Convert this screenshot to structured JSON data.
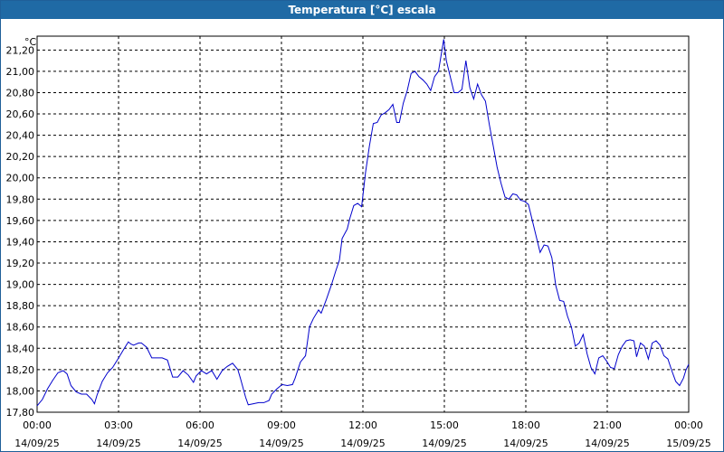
{
  "window": {
    "title": "Temperatura [°C] escala"
  },
  "chart_data": {
    "type": "line",
    "title": "Temperatura [°C] escala",
    "unit_label": "°C",
    "xlabel": "",
    "ylabel": "",
    "grid": true,
    "ylim": [
      17.8,
      21.33
    ],
    "xlim": [
      0,
      24
    ],
    "y_ticks": [
      {
        "v": 17.8,
        "label": "17,80"
      },
      {
        "v": 18.0,
        "label": "18,00"
      },
      {
        "v": 18.2,
        "label": "18,20"
      },
      {
        "v": 18.4,
        "label": "18,40"
      },
      {
        "v": 18.6,
        "label": "18,60"
      },
      {
        "v": 18.8,
        "label": "18,80"
      },
      {
        "v": 19.0,
        "label": "19,00"
      },
      {
        "v": 19.2,
        "label": "19,20"
      },
      {
        "v": 19.4,
        "label": "19,40"
      },
      {
        "v": 19.6,
        "label": "19,60"
      },
      {
        "v": 19.8,
        "label": "19,80"
      },
      {
        "v": 20.0,
        "label": "20,00"
      },
      {
        "v": 20.2,
        "label": "20,20"
      },
      {
        "v": 20.4,
        "label": "20,40"
      },
      {
        "v": 20.6,
        "label": "20,60"
      },
      {
        "v": 20.8,
        "label": "20,80"
      },
      {
        "v": 21.0,
        "label": "21,00"
      },
      {
        "v": 21.2,
        "label": "21,20"
      }
    ],
    "x_ticks": [
      {
        "h": 0,
        "time": "00:00",
        "date": "14/09/25"
      },
      {
        "h": 3,
        "time": "03:00",
        "date": "14/09/25"
      },
      {
        "h": 6,
        "time": "06:00",
        "date": "14/09/25"
      },
      {
        "h": 9,
        "time": "09:00",
        "date": "14/09/25"
      },
      {
        "h": 12,
        "time": "12:00",
        "date": "14/09/25"
      },
      {
        "h": 15,
        "time": "15:00",
        "date": "14/09/25"
      },
      {
        "h": 18,
        "time": "18:00",
        "date": "14/09/25"
      },
      {
        "h": 21,
        "time": "21:00",
        "date": "14/09/25"
      },
      {
        "h": 24,
        "time": "00:00",
        "date": "15/09/25"
      }
    ],
    "series": [
      {
        "color": "#0000cc",
        "points": [
          [
            0.0,
            17.86
          ],
          [
            0.2,
            17.92
          ],
          [
            0.4,
            18.02
          ],
          [
            0.6,
            18.1
          ],
          [
            0.8,
            18.17
          ],
          [
            1.0,
            18.19
          ],
          [
            1.15,
            18.16
          ],
          [
            1.3,
            18.05
          ],
          [
            1.5,
            17.99
          ],
          [
            1.7,
            17.97
          ],
          [
            1.9,
            17.97
          ],
          [
            2.1,
            17.92
          ],
          [
            2.2,
            17.88
          ],
          [
            2.3,
            17.96
          ],
          [
            2.5,
            18.09
          ],
          [
            2.7,
            18.17
          ],
          [
            2.9,
            18.22
          ],
          [
            3.1,
            18.3
          ],
          [
            3.3,
            18.38
          ],
          [
            3.5,
            18.46
          ],
          [
            3.6,
            18.44
          ],
          [
            3.7,
            18.43
          ],
          [
            3.9,
            18.45
          ],
          [
            4.0,
            18.45
          ],
          [
            4.2,
            18.41
          ],
          [
            4.4,
            18.31
          ],
          [
            4.6,
            18.31
          ],
          [
            4.8,
            18.31
          ],
          [
            5.0,
            18.29
          ],
          [
            5.2,
            18.13
          ],
          [
            5.4,
            18.13
          ],
          [
            5.6,
            18.19
          ],
          [
            5.8,
            18.15
          ],
          [
            6.0,
            18.08
          ],
          [
            6.1,
            18.14
          ],
          [
            6.3,
            18.19
          ],
          [
            6.5,
            18.16
          ],
          [
            6.7,
            18.19
          ],
          [
            6.9,
            18.11
          ],
          [
            7.1,
            18.19
          ],
          [
            7.3,
            18.23
          ],
          [
            7.5,
            18.26
          ],
          [
            7.7,
            18.2
          ],
          [
            7.8,
            18.12
          ],
          [
            8.0,
            17.94
          ],
          [
            8.1,
            17.87
          ],
          [
            8.3,
            17.88
          ],
          [
            8.5,
            17.89
          ],
          [
            8.7,
            17.89
          ],
          [
            8.9,
            17.91
          ],
          [
            9.0,
            17.97
          ],
          [
            9.2,
            18.02
          ],
          [
            9.4,
            18.06
          ],
          [
            9.6,
            18.05
          ],
          [
            9.8,
            18.06
          ],
          [
            9.9,
            18.12
          ],
          [
            10.1,
            18.27
          ],
          [
            10.3,
            18.33
          ],
          [
            10.45,
            18.6
          ],
          [
            10.6,
            18.68
          ],
          [
            10.8,
            18.76
          ],
          [
            10.9,
            18.73
          ],
          [
            11.1,
            18.86
          ],
          [
            11.3,
            19.0
          ],
          [
            11.45,
            19.12
          ],
          [
            11.6,
            19.23
          ],
          [
            11.7,
            19.43
          ],
          [
            11.9,
            19.52
          ],
          [
            12.0,
            19.62
          ],
          [
            12.15,
            19.74
          ],
          [
            12.3,
            19.76
          ],
          [
            12.45,
            19.73
          ],
          [
            12.6,
            20.05
          ],
          [
            12.75,
            20.3
          ],
          [
            12.9,
            20.51
          ],
          [
            13.05,
            20.52
          ],
          [
            13.2,
            20.59
          ],
          [
            13.35,
            20.61
          ],
          [
            13.5,
            20.64
          ],
          [
            13.65,
            20.69
          ],
          [
            13.8,
            20.52
          ],
          [
            13.9,
            20.52
          ],
          [
            14.05,
            20.7
          ],
          [
            14.2,
            20.82
          ],
          [
            14.35,
            20.98
          ],
          [
            14.5,
            21.0
          ],
          [
            14.65,
            20.95
          ],
          [
            14.8,
            20.92
          ],
          [
            14.95,
            20.88
          ],
          [
            15.1,
            20.82
          ],
          [
            15.25,
            20.95
          ],
          [
            15.4,
            21.0
          ],
          [
            15.5,
            21.15
          ],
          [
            15.6,
            21.3
          ],
          [
            15.7,
            21.1
          ],
          [
            15.85,
            20.95
          ],
          [
            16.0,
            20.8
          ],
          [
            16.15,
            20.8
          ],
          [
            16.3,
            20.83
          ],
          [
            16.45,
            21.1
          ],
          [
            16.6,
            20.85
          ],
          [
            16.75,
            20.74
          ],
          [
            16.9,
            20.88
          ],
          [
            17.05,
            20.78
          ],
          [
            17.2,
            20.72
          ],
          [
            17.35,
            20.5
          ],
          [
            17.5,
            20.3
          ],
          [
            17.65,
            20.1
          ],
          [
            17.8,
            19.95
          ],
          [
            17.95,
            19.82
          ],
          [
            18.1,
            19.8
          ],
          [
            18.25,
            19.85
          ],
          [
            18.4,
            19.84
          ],
          [
            18.55,
            19.79
          ],
          [
            18.7,
            19.78
          ],
          [
            18.85,
            19.75
          ],
          [
            19.0,
            19.6
          ],
          [
            19.15,
            19.45
          ],
          [
            19.3,
            19.3
          ],
          [
            19.45,
            19.37
          ],
          [
            19.6,
            19.36
          ],
          [
            19.75,
            19.25
          ],
          [
            19.9,
            18.99
          ],
          [
            20.05,
            18.85
          ],
          [
            20.2,
            18.84
          ],
          [
            20.35,
            18.7
          ],
          [
            20.5,
            18.6
          ],
          [
            20.65,
            18.42
          ],
          [
            20.8,
            18.45
          ],
          [
            20.95,
            18.53
          ],
          [
            21.1,
            18.35
          ],
          [
            21.25,
            18.22
          ],
          [
            21.4,
            18.16
          ],
          [
            21.55,
            18.31
          ],
          [
            21.7,
            18.33
          ],
          [
            21.85,
            18.28
          ],
          [
            22.0,
            18.22
          ],
          [
            22.15,
            18.21
          ],
          [
            22.3,
            18.34
          ],
          [
            22.45,
            18.42
          ],
          [
            22.6,
            18.47
          ],
          [
            22.75,
            18.48
          ],
          [
            22.9,
            18.47
          ],
          [
            23.0,
            18.32
          ],
          [
            23.15,
            18.45
          ],
          [
            23.3,
            18.42
          ],
          [
            23.45,
            18.3
          ],
          [
            23.6,
            18.45
          ],
          [
            23.75,
            18.47
          ],
          [
            23.9,
            18.43
          ],
          [
            24.05,
            18.33
          ],
          [
            24.2,
            18.3
          ],
          [
            24.35,
            18.19
          ],
          [
            24.5,
            18.09
          ],
          [
            24.65,
            18.05
          ],
          [
            24.8,
            18.12
          ],
          [
            24.9,
            18.2
          ],
          [
            25.0,
            18.25
          ]
        ]
      }
    ]
  }
}
